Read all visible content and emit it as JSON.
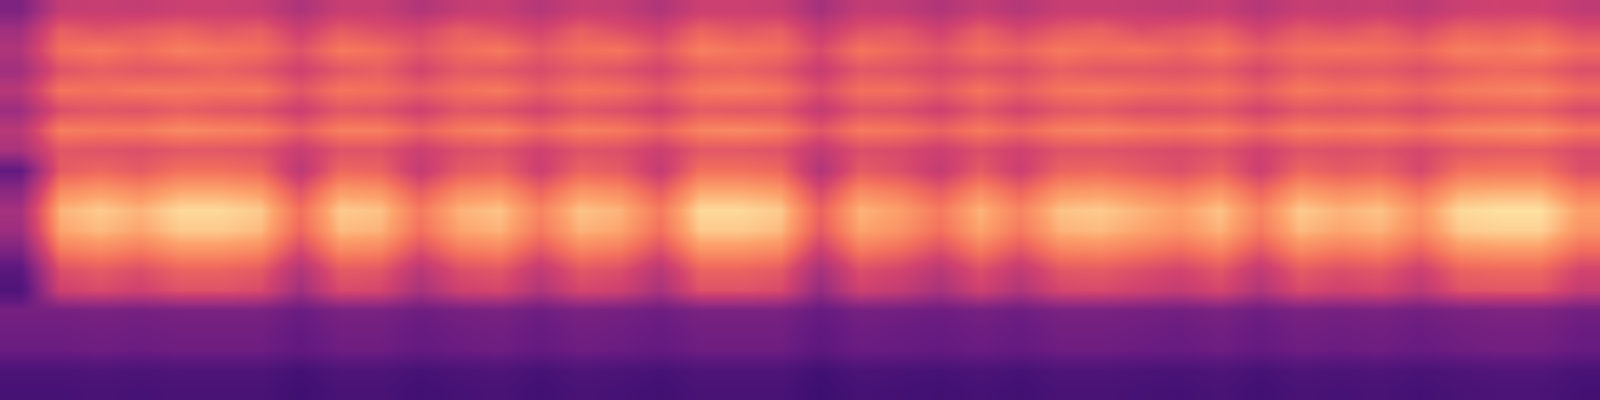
{
  "chart_data": {
    "type": "heatmap",
    "tick_labels": false,
    "cells": [
      [
        37,
        55,
        56,
        55,
        57,
        57,
        56,
        49,
        56,
        56,
        50,
        55,
        56,
        51,
        56,
        55,
        50,
        57,
        57,
        56,
        47,
        55,
        54,
        50,
        55,
        51,
        56,
        56,
        55,
        54,
        56,
        51,
        56,
        55,
        56,
        53,
        57,
        58,
        58,
        54
      ],
      [
        46,
        66,
        63,
        65,
        67,
        64,
        66,
        57,
        65,
        62,
        60,
        66,
        63,
        59,
        66,
        62,
        58,
        67,
        64,
        66,
        55,
        63,
        64,
        58,
        66,
        60,
        65,
        67,
        62,
        64,
        66,
        59,
        65,
        63,
        66,
        61,
        67,
        66,
        68,
        62
      ],
      [
        50,
        70,
        72,
        69,
        73,
        71,
        70,
        63,
        72,
        70,
        64,
        69,
        72,
        65,
        70,
        71,
        64,
        73,
        71,
        70,
        61,
        71,
        68,
        64,
        70,
        67,
        72,
        70,
        71,
        68,
        72,
        66,
        70,
        71,
        70,
        68,
        73,
        72,
        74,
        69
      ],
      [
        46,
        63,
        66,
        64,
        65,
        67,
        64,
        58,
        64,
        66,
        59,
        65,
        64,
        61,
        65,
        63,
        59,
        66,
        67,
        64,
        56,
        64,
        63,
        60,
        63,
        61,
        66,
        64,
        64,
        63,
        65,
        60,
        66,
        64,
        65,
        62,
        66,
        68,
        67,
        62
      ],
      [
        52,
        71,
        70,
        72,
        72,
        71,
        72,
        64,
        71,
        70,
        66,
        70,
        72,
        66,
        71,
        70,
        65,
        72,
        73,
        71,
        62,
        70,
        70,
        65,
        71,
        66,
        71,
        72,
        70,
        69,
        71,
        66,
        72,
        70,
        71,
        68,
        72,
        73,
        74,
        69
      ],
      [
        45,
        62,
        64,
        63,
        66,
        64,
        63,
        57,
        64,
        63,
        58,
        64,
        63,
        59,
        64,
        62,
        58,
        65,
        64,
        64,
        55,
        63,
        62,
        58,
        64,
        59,
        64,
        65,
        62,
        62,
        64,
        59,
        64,
        63,
        64,
        61,
        65,
        66,
        66,
        61
      ],
      [
        52,
        73,
        72,
        72,
        75,
        74,
        73,
        66,
        73,
        73,
        67,
        72,
        74,
        68,
        73,
        72,
        67,
        74,
        75,
        73,
        64,
        72,
        71,
        67,
        72,
        68,
        73,
        74,
        72,
        71,
        73,
        68,
        73,
        72,
        73,
        70,
        74,
        75,
        76,
        71
      ],
      [
        48,
        64,
        63,
        62,
        64,
        64,
        63,
        56,
        63,
        63,
        57,
        62,
        63,
        58,
        63,
        62,
        57,
        64,
        64,
        63,
        54,
        62,
        61,
        57,
        62,
        58,
        63,
        63,
        62,
        61,
        63,
        58,
        63,
        62,
        63,
        60,
        64,
        65,
        65,
        61
      ],
      [
        30,
        65,
        68,
        65,
        70,
        70,
        68,
        53,
        68,
        67,
        55,
        65,
        67,
        57,
        67,
        65,
        55,
        70,
        70,
        68,
        50,
        65,
        62,
        55,
        65,
        57,
        67,
        68,
        65,
        62,
        67,
        57,
        68,
        65,
        67,
        60,
        70,
        71,
        71,
        62
      ],
      [
        40,
        75,
        78,
        75,
        80,
        80,
        78,
        63,
        78,
        77,
        65,
        75,
        77,
        67,
        77,
        75,
        65,
        80,
        80,
        78,
        60,
        75,
        72,
        65,
        75,
        67,
        77,
        78,
        75,
        72,
        77,
        67,
        78,
        75,
        77,
        70,
        80,
        81,
        81,
        72
      ],
      [
        47,
        82,
        85,
        82,
        87,
        87,
        85,
        70,
        85,
        84,
        72,
        82,
        84,
        74,
        84,
        82,
        72,
        87,
        87,
        85,
        67,
        82,
        79,
        72,
        82,
        74,
        84,
        85,
        82,
        79,
        84,
        74,
        85,
        82,
        84,
        77,
        87,
        88,
        88,
        79
      ],
      [
        45,
        80,
        83,
        80,
        85,
        85,
        83,
        68,
        83,
        82,
        70,
        80,
        82,
        72,
        82,
        80,
        70,
        85,
        85,
        83,
        65,
        80,
        77,
        70,
        80,
        72,
        82,
        83,
        80,
        77,
        82,
        72,
        83,
        80,
        82,
        75,
        85,
        86,
        86,
        77
      ],
      [
        37,
        72,
        75,
        72,
        77,
        77,
        75,
        60,
        75,
        74,
        62,
        72,
        74,
        64,
        74,
        72,
        62,
        77,
        77,
        75,
        57,
        72,
        69,
        62,
        72,
        64,
        74,
        75,
        72,
        69,
        74,
        64,
        75,
        72,
        74,
        67,
        77,
        78,
        78,
        69
      ],
      [
        27,
        62,
        65,
        62,
        67,
        67,
        65,
        50,
        65,
        64,
        52,
        62,
        64,
        54,
        64,
        62,
        52,
        67,
        67,
        65,
        47,
        62,
        59,
        52,
        62,
        54,
        64,
        65,
        62,
        59,
        64,
        54,
        65,
        62,
        64,
        57,
        67,
        68,
        68,
        59
      ],
      [
        23,
        58,
        61,
        58,
        63,
        63,
        61,
        46,
        61,
        60,
        48,
        58,
        60,
        50,
        60,
        58,
        48,
        63,
        63,
        61,
        43,
        58,
        55,
        48,
        58,
        50,
        60,
        61,
        58,
        55,
        60,
        50,
        61,
        58,
        60,
        53,
        63,
        64,
        64,
        55
      ],
      [
        35,
        35,
        36,
        35,
        36,
        36,
        36,
        32,
        36,
        36,
        33,
        35,
        36,
        33,
        36,
        35,
        33,
        36,
        36,
        36,
        31,
        35,
        34,
        33,
        35,
        33,
        36,
        36,
        35,
        34,
        36,
        33,
        36,
        35,
        36,
        34,
        36,
        37,
        37,
        34
      ],
      [
        33,
        33,
        34,
        33,
        34,
        34,
        34,
        30,
        34,
        34,
        31,
        33,
        34,
        31,
        34,
        33,
        31,
        34,
        34,
        34,
        29,
        33,
        32,
        31,
        33,
        31,
        34,
        34,
        33,
        32,
        34,
        31,
        34,
        33,
        34,
        32,
        34,
        35,
        35,
        32
      ],
      [
        32,
        32,
        33,
        32,
        33,
        33,
        33,
        29,
        33,
        33,
        30,
        32,
        33,
        30,
        33,
        32,
        30,
        33,
        33,
        33,
        28,
        32,
        31,
        30,
        32,
        30,
        33,
        33,
        32,
        31,
        33,
        30,
        33,
        32,
        33,
        31,
        33,
        34,
        34,
        31
      ],
      [
        22,
        22,
        23,
        22,
        23,
        23,
        23,
        19,
        23,
        23,
        20,
        22,
        23,
        20,
        23,
        22,
        20,
        23,
        23,
        23,
        18,
        22,
        21,
        20,
        22,
        20,
        23,
        23,
        22,
        21,
        23,
        20,
        23,
        22,
        23,
        21,
        23,
        24,
        24,
        21
      ],
      [
        20,
        20,
        21,
        20,
        21,
        21,
        21,
        17,
        21,
        21,
        18,
        20,
        21,
        18,
        21,
        20,
        18,
        21,
        21,
        21,
        16,
        20,
        19,
        18,
        20,
        18,
        21,
        21,
        20,
        19,
        21,
        18,
        21,
        20,
        21,
        19,
        21,
        22,
        22,
        19
      ]
    ]
  }
}
